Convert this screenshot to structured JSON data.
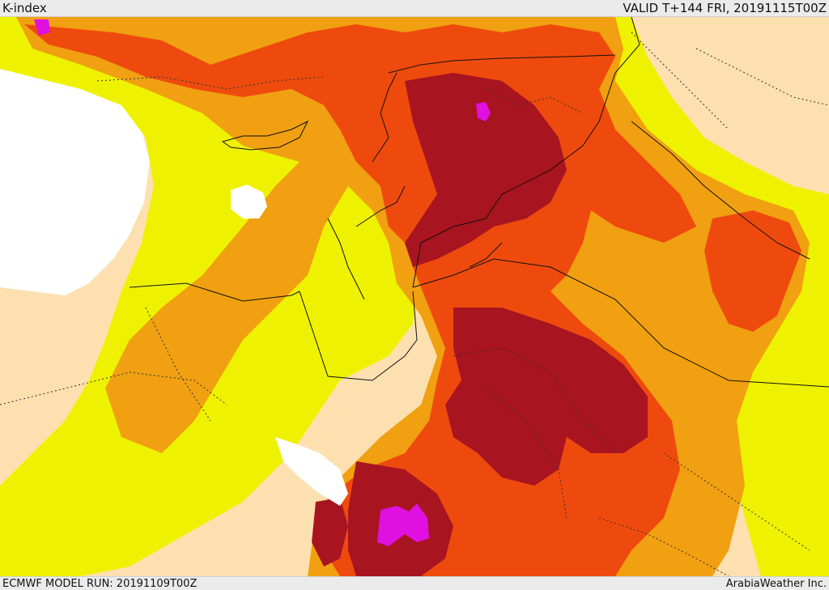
{
  "header": {
    "field_label": "K-index",
    "valid_label": "VALID T+144 FRI, 20191115T00Z"
  },
  "footer": {
    "model_run": "ECMWF MODEL RUN: 20191109T00Z",
    "credit": "ArabiaWeather Inc."
  },
  "palette": {
    "land_background": "#fde0b0",
    "sea_low": "#ffffff",
    "k_yellow": "#eef200",
    "k_orange_light": "#f0a010",
    "k_orange": "#ef4a0d",
    "k_dark_red": "#a81420",
    "k_magenta": "#e010e0"
  }
}
